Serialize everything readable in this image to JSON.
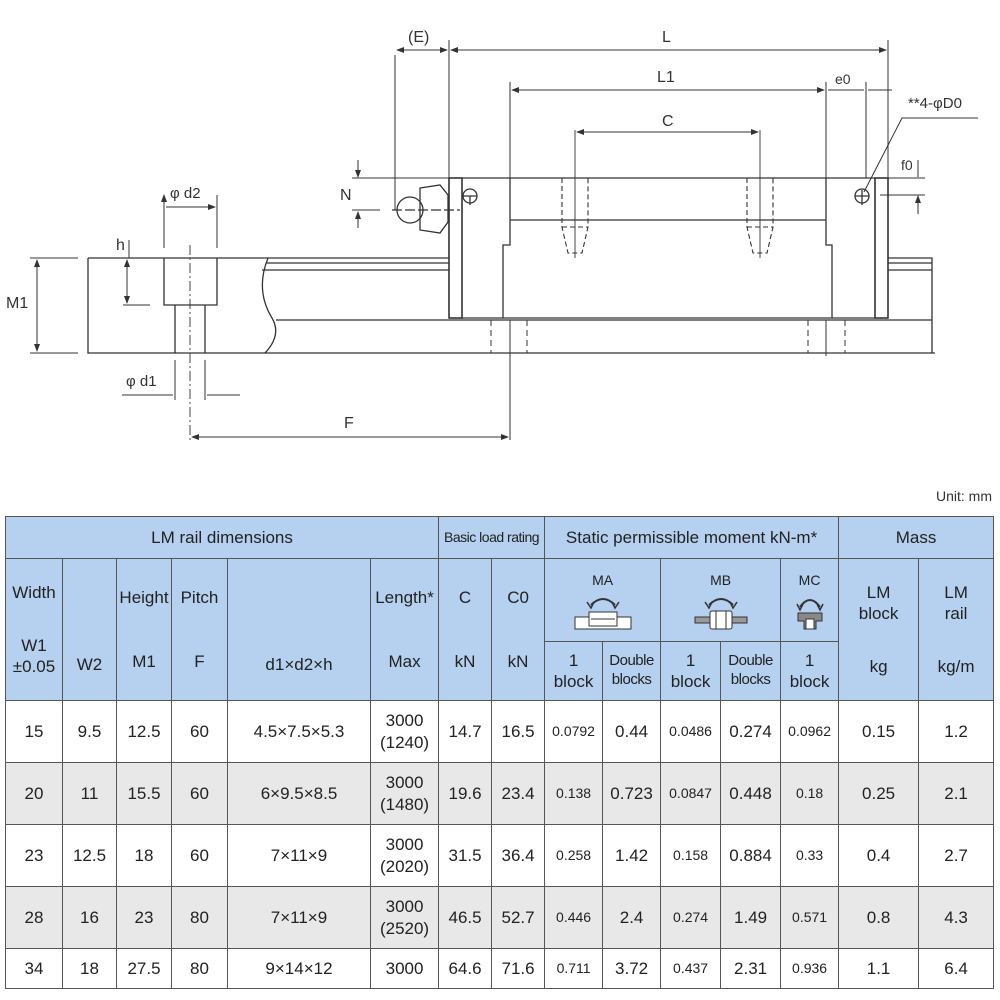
{
  "drawing": {
    "labels": {
      "E": "(E)",
      "L": "L",
      "L1": "L1",
      "e0": "e0",
      "C": "C",
      "D0": "**4-φD0",
      "f0": "f0",
      "N": "N",
      "d2": "φ d2",
      "h": "h",
      "M1": "M1",
      "d1": "φ d1",
      "F": "F"
    }
  },
  "unit": "Unit: mm",
  "table": {
    "groups": {
      "rail": "LM rail dimensions",
      "load": "Basic load rating",
      "moment": "Static permissible moment kN-m*",
      "mass": "Mass"
    },
    "cols": {
      "width": "Width",
      "w1": "W1",
      "w1_tol": "±0.05",
      "w2": "W2",
      "height": "Height",
      "m1": "M1",
      "pitch": "Pitch",
      "f": "F",
      "dh": "d1×d2×h",
      "length": "Length*",
      "max": "Max",
      "c": "C",
      "c_unit": "kN",
      "c0": "C0",
      "c0_unit": "kN",
      "ma": "MA",
      "mb": "MB",
      "mc": "MC",
      "one": "1",
      "block": "block",
      "double": "Double",
      "blocks": "blocks",
      "lm_block": "LM block",
      "kg": "kg",
      "lm_rail": "LM rail",
      "kgm": "kg/m"
    },
    "rows": [
      {
        "w1": "15",
        "w2": "9.5",
        "m1": "12.5",
        "f": "60",
        "dh": "4.5×7.5×5.3",
        "len": "3000",
        "len2": "(1240)",
        "c": "14.7",
        "c0": "16.5",
        "ma1": "0.0792",
        "ma2": "0.44",
        "mb1": "0.0486",
        "mb2": "0.274",
        "mc": "0.0962",
        "kg": "0.15",
        "kgm": "1.2"
      },
      {
        "w1": "20",
        "w2": "11",
        "m1": "15.5",
        "f": "60",
        "dh": "6×9.5×8.5",
        "len": "3000",
        "len2": "(1480)",
        "c": "19.6",
        "c0": "23.4",
        "ma1": "0.138",
        "ma2": "0.723",
        "mb1": "0.0847",
        "mb2": "0.448",
        "mc": "0.18",
        "kg": "0.25",
        "kgm": "2.1"
      },
      {
        "w1": "23",
        "w2": "12.5",
        "m1": "18",
        "f": "60",
        "dh": "7×11×9",
        "len": "3000",
        "len2": "(2020)",
        "c": "31.5",
        "c0": "36.4",
        "ma1": "0.258",
        "ma2": "1.42",
        "mb1": "0.158",
        "mb2": "0.884",
        "mc": "0.33",
        "kg": "0.4",
        "kgm": "2.7"
      },
      {
        "w1": "28",
        "w2": "16",
        "m1": "23",
        "f": "80",
        "dh": "7×11×9",
        "len": "3000",
        "len2": "(2520)",
        "c": "46.5",
        "c0": "52.7",
        "ma1": "0.446",
        "ma2": "2.4",
        "mb1": "0.274",
        "mb2": "1.49",
        "mc": "0.571",
        "kg": "0.8",
        "kgm": "4.3"
      },
      {
        "w1": "34",
        "w2": "18",
        "m1": "27.5",
        "f": "80",
        "dh": "9×14×12",
        "len": "3000",
        "len2": "",
        "c": "64.6",
        "c0": "71.6",
        "ma1": "0.711",
        "ma2": "3.72",
        "mb1": "0.437",
        "mb2": "2.31",
        "mc": "0.936",
        "kg": "1.1",
        "kgm": "6.4"
      }
    ],
    "colors": {
      "header": "#b5d1ef",
      "alt_row": "#e8e8e8"
    }
  }
}
